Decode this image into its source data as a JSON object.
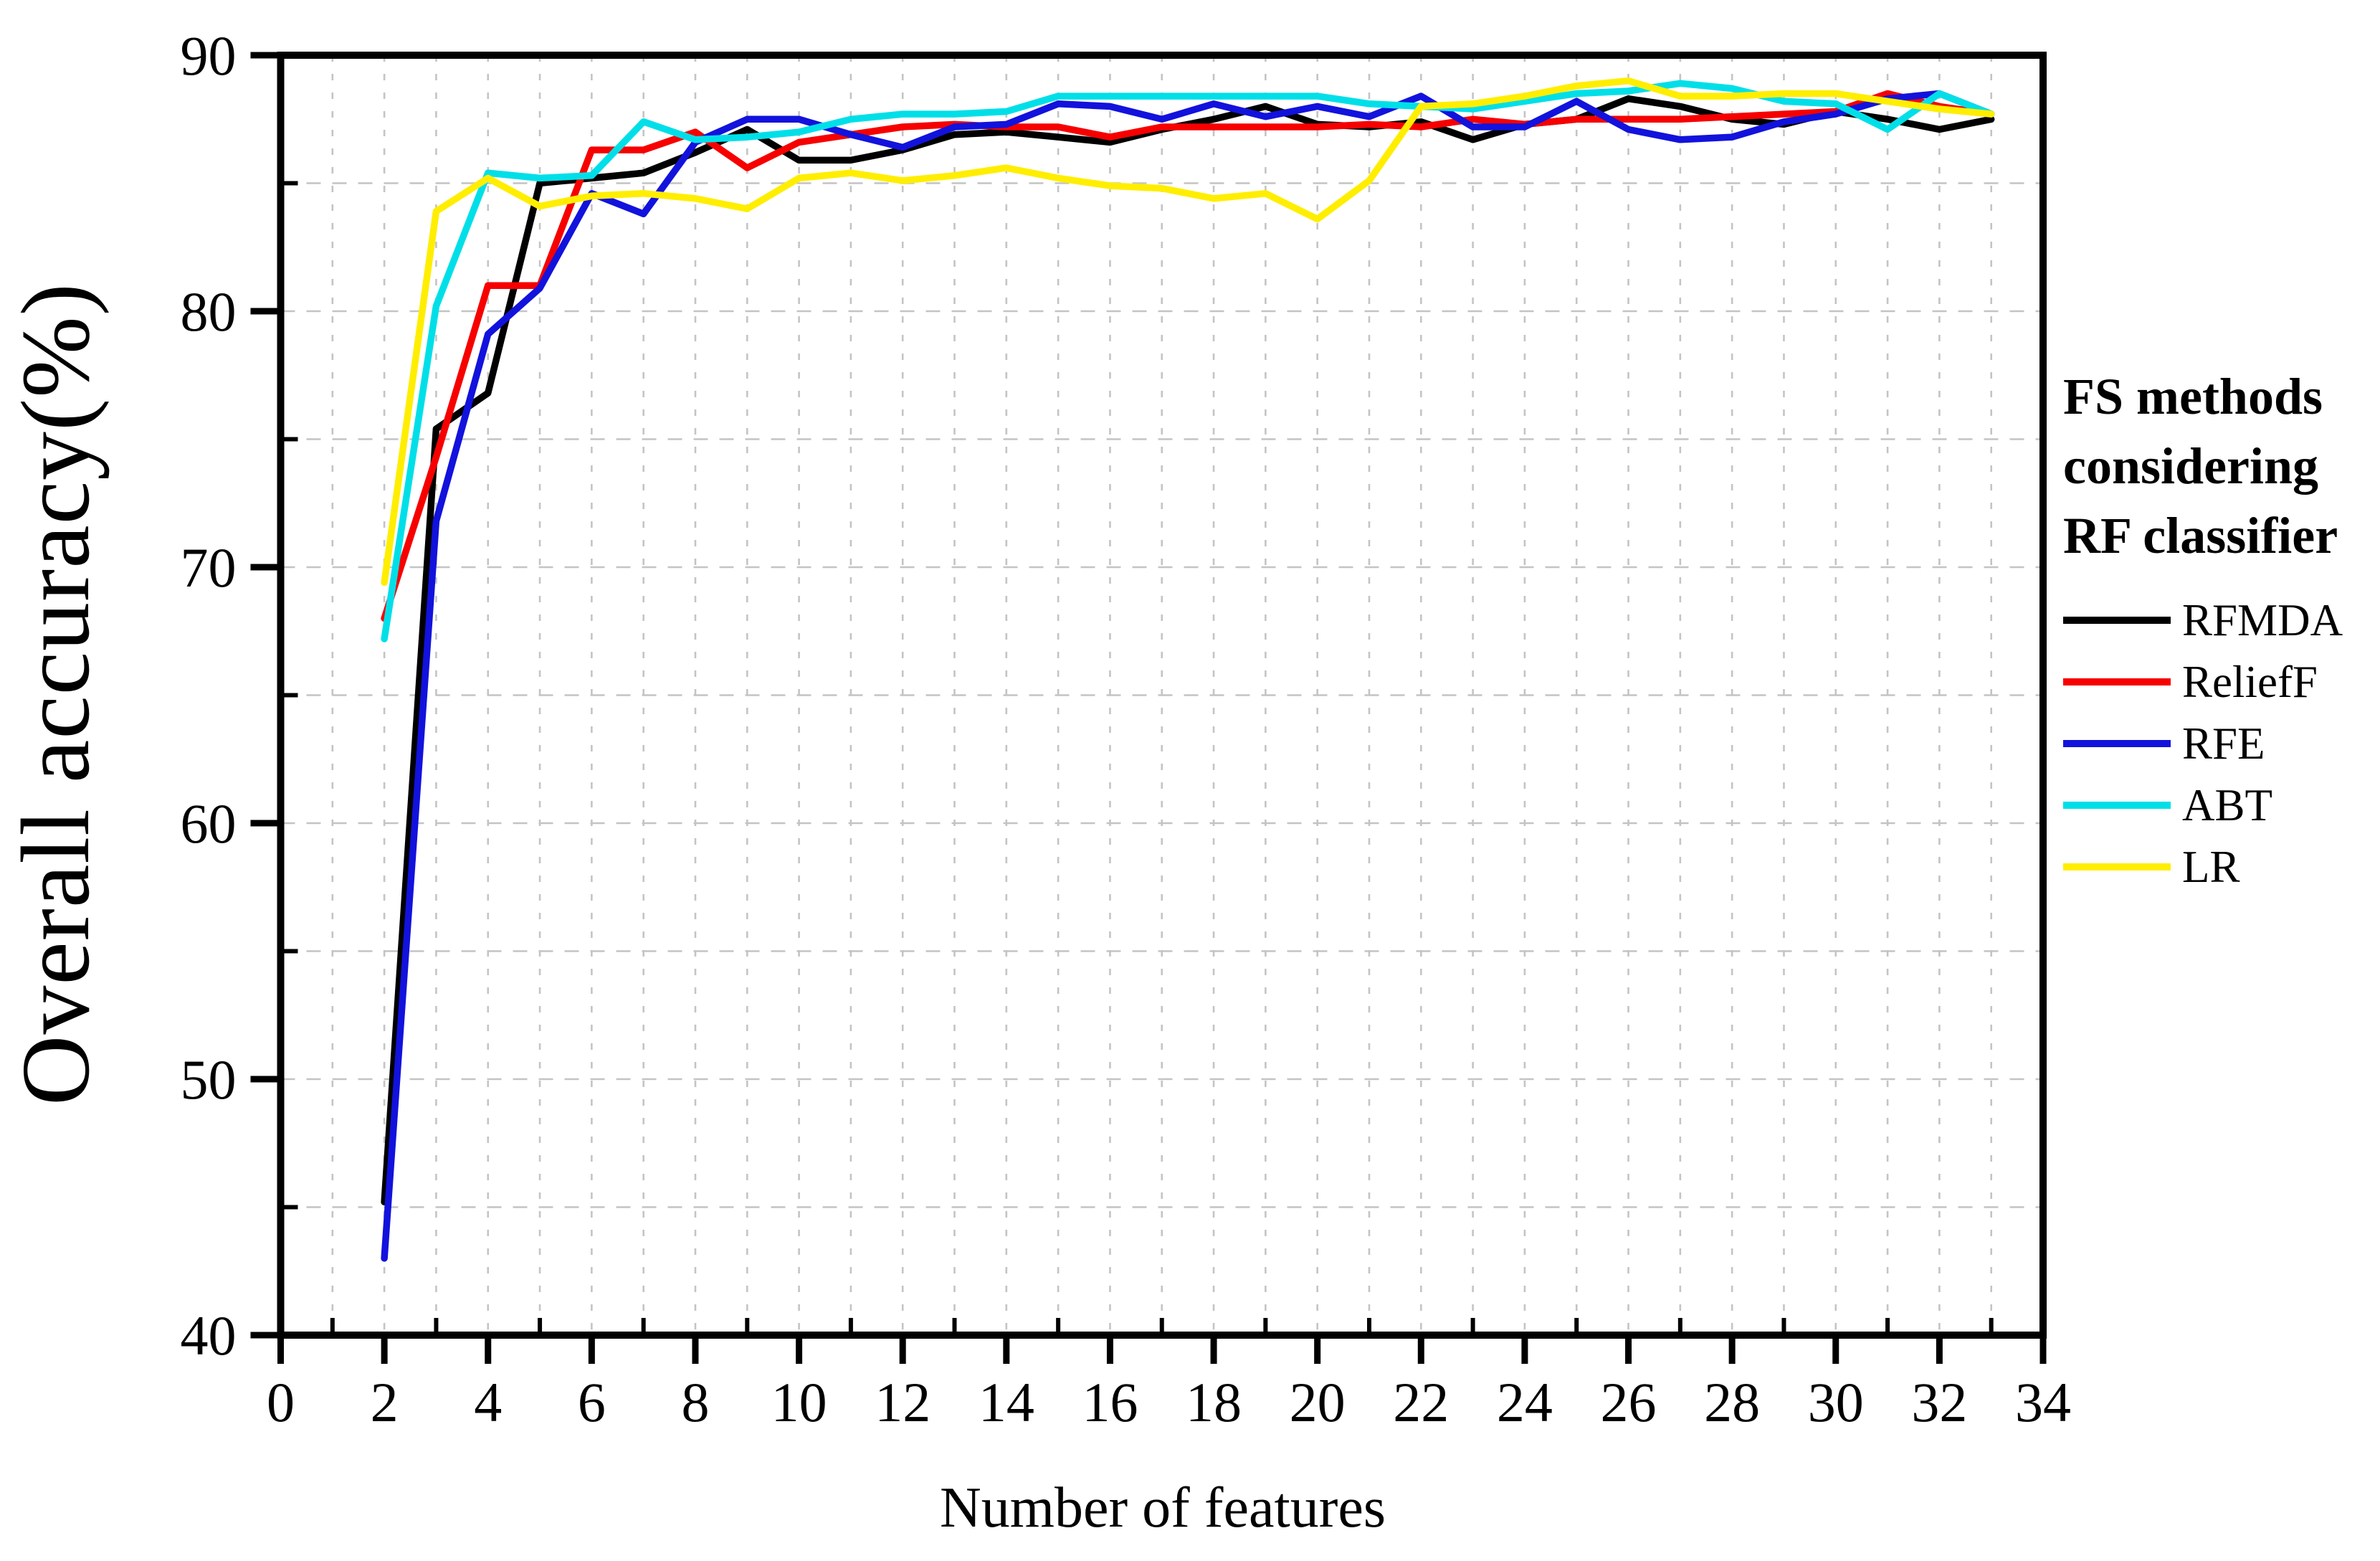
{
  "figure": {
    "background_color": "#ffffff",
    "grid_color": "#c4c4c4",
    "axis_color": "#000000"
  },
  "chart_data": {
    "type": "line",
    "title": "",
    "xlabel": "Number of features",
    "ylabel": "Overall accuracy(%)",
    "xlim": [
      0,
      34
    ],
    "ylim": [
      40,
      90
    ],
    "x_major_ticks": [
      0,
      2,
      4,
      6,
      8,
      10,
      12,
      14,
      16,
      18,
      20,
      22,
      24,
      26,
      28,
      30,
      32,
      34
    ],
    "x_minor_ticks": [
      1,
      3,
      5,
      7,
      9,
      11,
      13,
      15,
      17,
      19,
      21,
      23,
      25,
      27,
      29,
      31,
      33
    ],
    "y_major_ticks": [
      40,
      50,
      60,
      70,
      80,
      90
    ],
    "y_minor_ticks": [
      45,
      55,
      65,
      75,
      85
    ],
    "grid": {
      "x_interval": 1,
      "y_interval": 5,
      "style": "dashed",
      "on": true
    },
    "legend_position": "right-outside",
    "x": [
      2,
      3,
      4,
      5,
      6,
      7,
      8,
      9,
      10,
      11,
      12,
      13,
      14,
      15,
      16,
      17,
      18,
      19,
      20,
      21,
      22,
      23,
      24,
      25,
      26,
      27,
      28,
      29,
      30,
      31,
      32,
      33
    ],
    "series": [
      {
        "name": "RFMDA",
        "color": "#000000",
        "values": [
          45.2,
          75.4,
          76.8,
          85.0,
          85.2,
          85.4,
          86.2,
          87.1,
          85.9,
          85.9,
          86.3,
          86.9,
          87.0,
          86.8,
          86.6,
          87.1,
          87.5,
          88.0,
          87.3,
          87.2,
          87.4,
          86.7,
          87.3,
          87.5,
          88.3,
          88.0,
          87.5,
          87.3,
          87.8,
          87.5,
          87.1,
          87.5
        ]
      },
      {
        "name": "ReliefF",
        "color": "#f60000",
        "values": [
          68.0,
          74.3,
          81.0,
          81.0,
          86.3,
          86.3,
          87.0,
          85.6,
          86.6,
          86.9,
          87.2,
          87.3,
          87.2,
          87.2,
          86.8,
          87.2,
          87.2,
          87.2,
          87.2,
          87.3,
          87.2,
          87.5,
          87.3,
          87.5,
          87.5,
          87.5,
          87.6,
          87.7,
          87.8,
          88.5,
          88.0,
          87.7
        ]
      },
      {
        "name": "RFE",
        "color": "#1212dd",
        "values": [
          43.0,
          71.8,
          79.1,
          80.9,
          84.6,
          83.8,
          86.6,
          87.5,
          87.5,
          86.9,
          86.4,
          87.2,
          87.3,
          88.1,
          88.0,
          87.5,
          88.1,
          87.6,
          88.0,
          87.6,
          88.4,
          87.2,
          87.2,
          88.2,
          87.1,
          86.7,
          86.8,
          87.4,
          87.7,
          88.3,
          88.5,
          87.7
        ]
      },
      {
        "name": "ABT",
        "color": "#00dfe8",
        "values": [
          67.2,
          80.2,
          85.4,
          85.2,
          85.3,
          87.4,
          86.7,
          86.8,
          87.0,
          87.5,
          87.7,
          87.7,
          87.8,
          88.4,
          88.4,
          88.4,
          88.4,
          88.4,
          88.4,
          88.1,
          88.0,
          87.9,
          88.2,
          88.5,
          88.6,
          88.9,
          88.7,
          88.2,
          88.1,
          87.1,
          88.5,
          87.7
        ]
      },
      {
        "name": "LR",
        "color": "#ffee00",
        "values": [
          69.4,
          83.9,
          85.2,
          84.1,
          84.5,
          84.6,
          84.4,
          84.0,
          85.2,
          85.4,
          85.1,
          85.3,
          85.6,
          85.2,
          84.9,
          84.8,
          84.4,
          84.6,
          83.6,
          85.1,
          88.0,
          88.1,
          88.4,
          88.8,
          89.0,
          88.4,
          88.4,
          88.5,
          88.5,
          88.2,
          87.9,
          87.7
        ]
      }
    ],
    "legend": {
      "title_lines": [
        "FS methods",
        "considering",
        "RF classifier"
      ]
    }
  }
}
